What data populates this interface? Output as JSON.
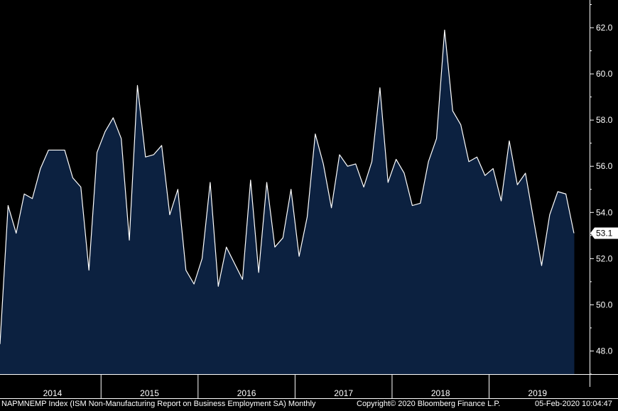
{
  "colors": {
    "background": "#000000",
    "area_fill": "#0c2140",
    "line": "#ffffff",
    "grid": "#4a4a4a",
    "last_label_bg": "#ffffff"
  },
  "footer": {
    "series_description": "NAPMNEMP Index (ISM Non-Manufacturing Report on Business Employment SA)  Monthly",
    "copyright": "Copyright© 2020 Bloomberg Finance L.P.",
    "timestamp": "05-Feb-2020 10:04:47"
  },
  "chart_data": {
    "type": "area",
    "title": "",
    "xlabel": "",
    "ylabel": "",
    "frequency": "Monthly",
    "ylim": [
      47,
      63.2
    ],
    "yticks": [
      48.0,
      50.0,
      52.0,
      54.0,
      56.0,
      58.0,
      60.0,
      62.0
    ],
    "y_axis_side": "right",
    "grid": false,
    "years": [
      "2014",
      "2015",
      "2016",
      "2017",
      "2018",
      "2019"
    ],
    "x_start": "2013-12",
    "last_value_label": "53.1",
    "series": [
      {
        "values": [
          48.3,
          54.3,
          53.1,
          54.8,
          54.6,
          55.9,
          56.7,
          56.7,
          56.7,
          55.5,
          55.1,
          51.5,
          56.6,
          57.5,
          58.1,
          57.2,
          52.8,
          59.5,
          56.4,
          56.5,
          56.9,
          53.9,
          55.0,
          51.5,
          50.9,
          52.0,
          55.3,
          50.8,
          52.5,
          51.8,
          51.1,
          55.4,
          51.4,
          55.3,
          52.5,
          52.9,
          55.0,
          52.1,
          53.8,
          57.4,
          56.1,
          54.2,
          56.5,
          56.0,
          56.1,
          55.1,
          56.2,
          59.4,
          55.3,
          56.3,
          55.7,
          54.3,
          54.4,
          56.2,
          57.2,
          61.9,
          58.4,
          57.8,
          56.2,
          56.4,
          55.6,
          55.9,
          54.5,
          57.1,
          55.2,
          55.7,
          53.7,
          51.7,
          53.9,
          54.9,
          54.8,
          53.1
        ]
      }
    ]
  }
}
